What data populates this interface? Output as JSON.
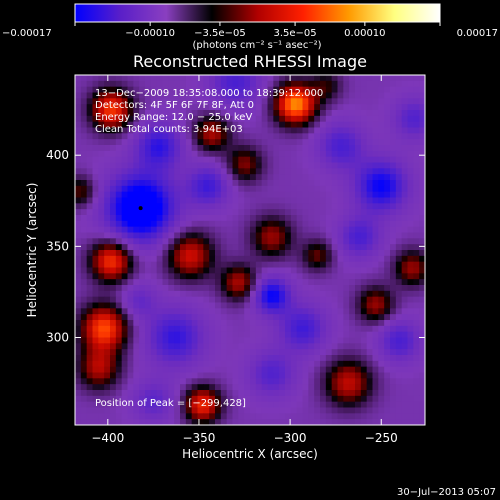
{
  "chart_data": {
    "type": "heatmap",
    "title": "Reconstructed RHESSI Image",
    "xlabel": "Heliocentric X (arcsec)",
    "ylabel": "Heliocentric Y (arcsec)",
    "xlim": [
      -418,
      -226
    ],
    "ylim": [
      252,
      444
    ],
    "x_ticks": [
      -400,
      -350,
      -300,
      -250
    ],
    "x_tick_labels": [
      "−400",
      "−350",
      "−300",
      "−250"
    ],
    "y_ticks": [
      300,
      350,
      400
    ],
    "y_tick_labels": [
      "300",
      "350",
      "400"
    ],
    "colorbar": {
      "range": [
        -0.00017,
        0.00017
      ],
      "ticks": [
        -0.00017,
        -0.0001,
        -3.5e-05,
        3.5e-05,
        0.0001,
        0.00017
      ],
      "tick_labels": [
        "−0.00017",
        "−0.00010",
        "−3.5e−05",
        "3.5e−05",
        "0.00010",
        "0.00017"
      ],
      "unit_label": "(photons cm⁻² s⁻¹ asec⁻²)",
      "colors": [
        "#0000ff",
        "#5a1fc8",
        "#8a3fc0",
        "#000000",
        "#b00000",
        "#ff2000",
        "#ff9a00",
        "#ffff80",
        "#ffffff"
      ]
    },
    "annotations": [
      "13−Dec−2009 18:35:08.000 to 18:39:12.000",
      "Detectors: 4F 5F 6F 7F 8F, Att 0",
      "Energy Range: 12.0 − 25.0 keV",
      "Clean    Total counts: 3.94E+03",
      "Position of Peak = [−299,428]"
    ],
    "peak": [
      -299,
      428
    ],
    "min_marker": [
      -382,
      371
    ],
    "blobs": [
      {
        "x": -297,
        "y": 428,
        "v": 1.0,
        "r": 8
      },
      {
        "x": -382,
        "y": 371,
        "v": -1.0,
        "r": 13
      },
      {
        "x": -250,
        "y": 383,
        "v": -0.7,
        "r": 10
      },
      {
        "x": -310,
        "y": 323,
        "v": -0.7,
        "r": 7
      },
      {
        "x": -398,
        "y": 425,
        "v": 0.8,
        "r": 8
      },
      {
        "x": -402,
        "y": 305,
        "v": 0.85,
        "r": 9
      },
      {
        "x": -398,
        "y": 342,
        "v": 0.8,
        "r": 8
      },
      {
        "x": -405,
        "y": 283,
        "v": 0.55,
        "r": 8
      },
      {
        "x": -343,
        "y": 412,
        "v": 0.55,
        "r": 7
      },
      {
        "x": -355,
        "y": 345,
        "v": 0.65,
        "r": 9
      },
      {
        "x": -328,
        "y": 330,
        "v": 0.55,
        "r": 7
      },
      {
        "x": -325,
        "y": 395,
        "v": 0.45,
        "r": 7
      },
      {
        "x": -310,
        "y": 355,
        "v": 0.5,
        "r": 8
      },
      {
        "x": -348,
        "y": 263,
        "v": 0.75,
        "r": 7
      },
      {
        "x": -268,
        "y": 275,
        "v": 0.6,
        "r": 9
      },
      {
        "x": -253,
        "y": 318,
        "v": 0.5,
        "r": 7
      },
      {
        "x": -285,
        "y": 345,
        "v": 0.4,
        "r": 6
      },
      {
        "x": -233,
        "y": 338,
        "v": 0.5,
        "r": 7
      },
      {
        "x": -415,
        "y": 380,
        "v": 0.4,
        "r": 6
      },
      {
        "x": -372,
        "y": 405,
        "v": -0.55,
        "r": 9
      },
      {
        "x": -363,
        "y": 300,
        "v": -0.55,
        "r": 11
      },
      {
        "x": -345,
        "y": 383,
        "v": -0.5,
        "r": 8
      },
      {
        "x": -293,
        "y": 305,
        "v": -0.5,
        "r": 9
      },
      {
        "x": -272,
        "y": 405,
        "v": -0.45,
        "r": 9
      },
      {
        "x": -240,
        "y": 298,
        "v": -0.45,
        "r": 8
      },
      {
        "x": -310,
        "y": 280,
        "v": -0.4,
        "r": 9
      },
      {
        "x": -330,
        "y": 440,
        "v": -0.45,
        "r": 10
      },
      {
        "x": -262,
        "y": 355,
        "v": -0.45,
        "r": 8
      },
      {
        "x": -280,
        "y": 438,
        "v": 0.3,
        "r": 6
      },
      {
        "x": -232,
        "y": 420,
        "v": -0.4,
        "r": 8
      },
      {
        "x": -375,
        "y": 265,
        "v": -0.35,
        "r": 8
      },
      {
        "x": -383,
        "y": 320,
        "v": -0.3,
        "r": 7
      }
    ]
  },
  "footer": {
    "timestamp": "30−Jul−2013 05:07"
  }
}
